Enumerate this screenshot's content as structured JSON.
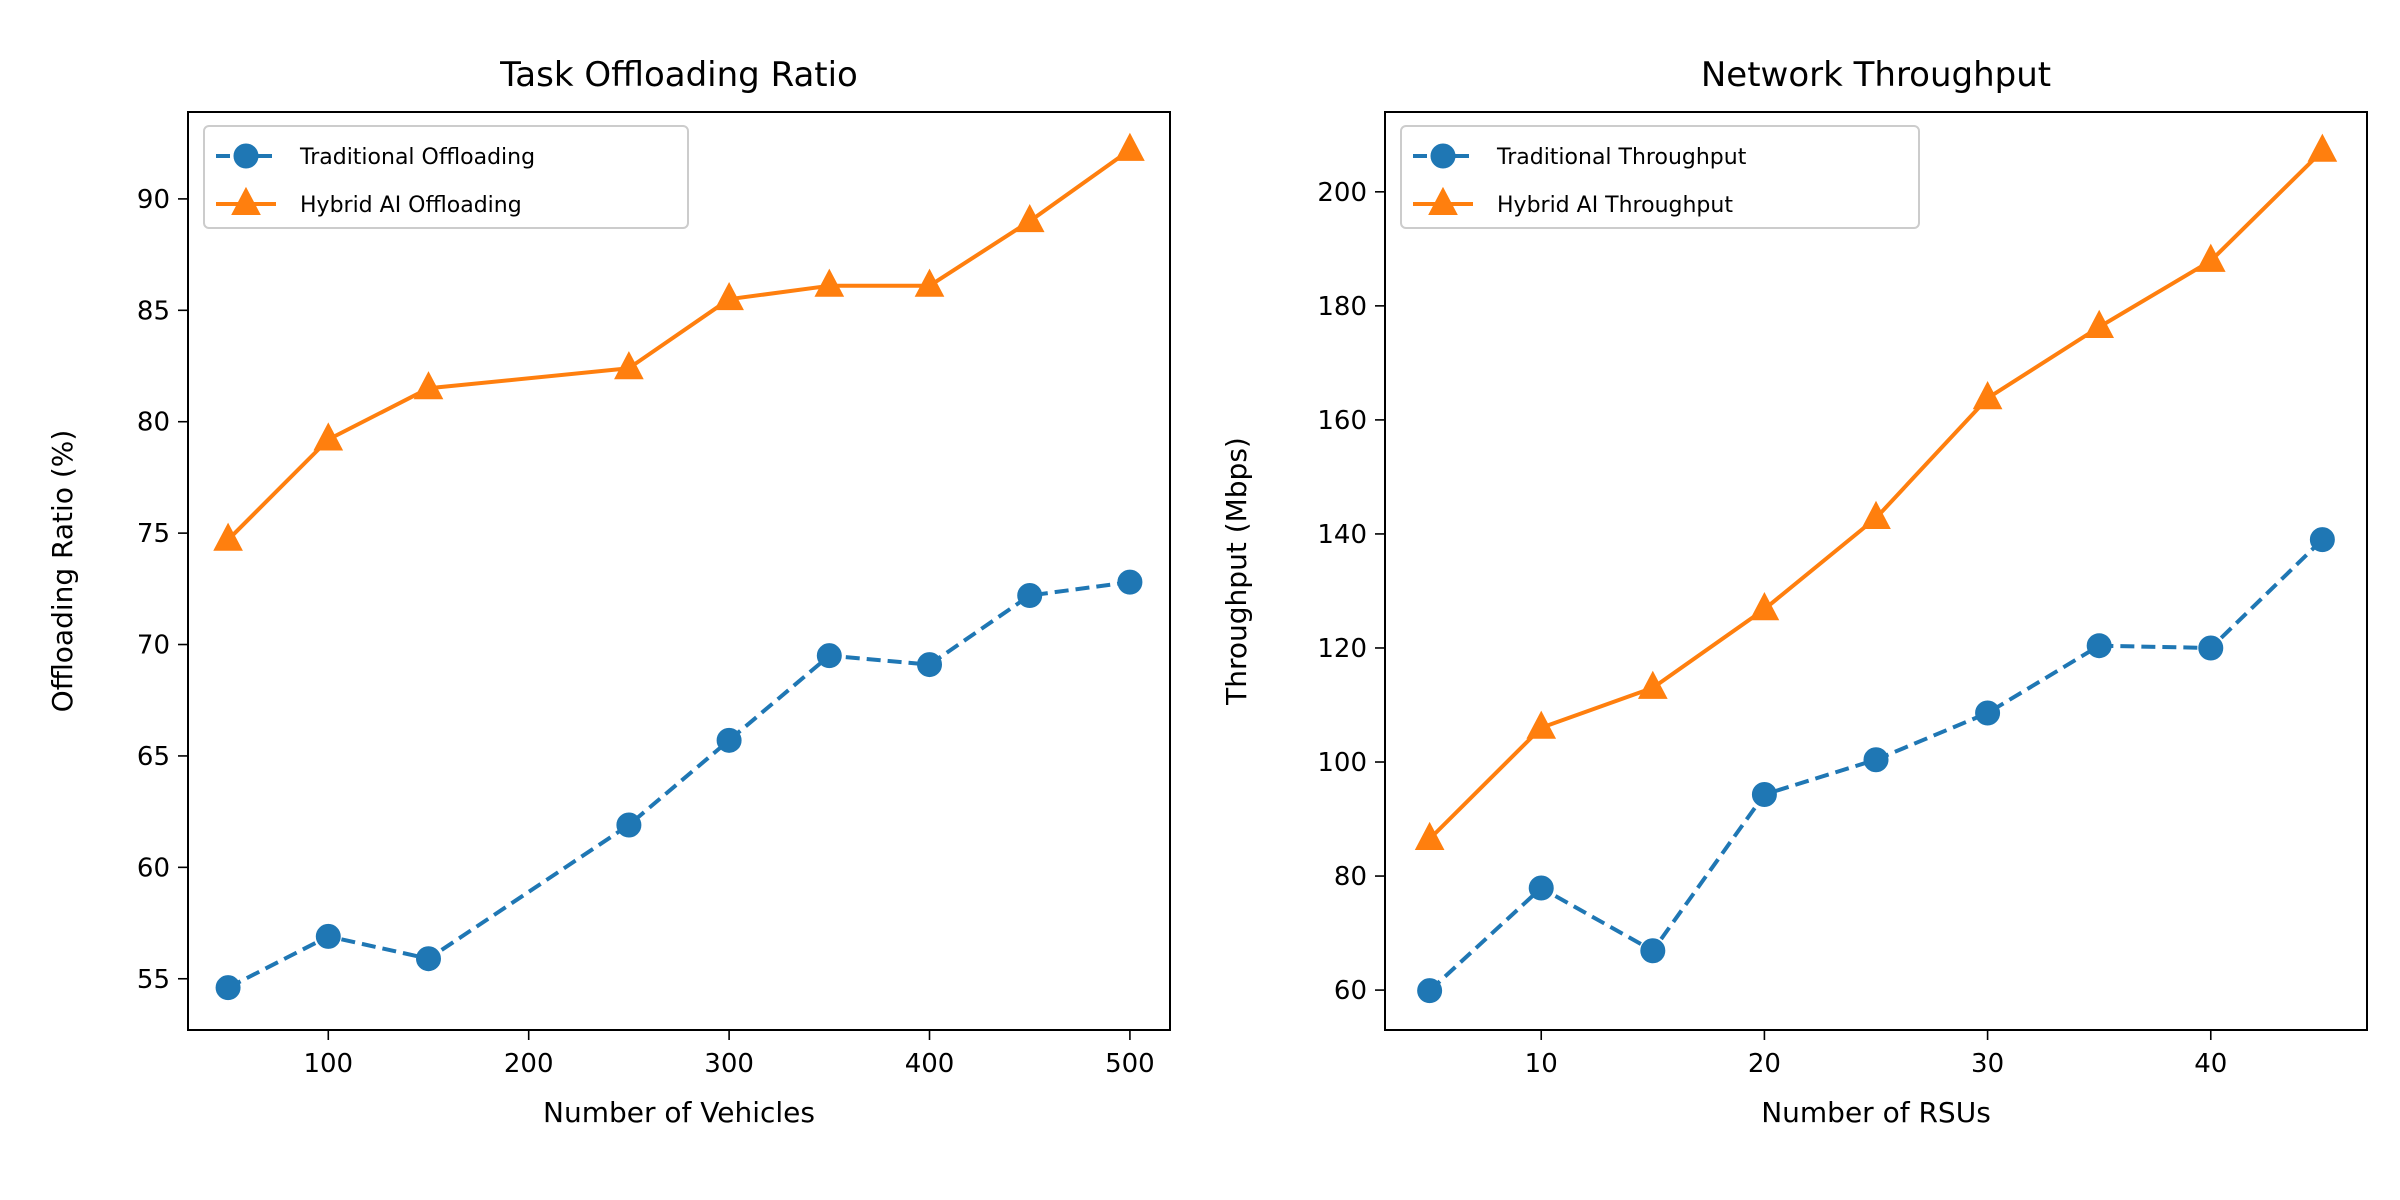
{
  "chart_data": [
    {
      "type": "line",
      "title": "Task Offloading Ratio",
      "xlabel": "Number of Vehicles",
      "ylabel": "Offloading Ratio (%)",
      "xlim": [
        30,
        520
      ],
      "ylim": [
        52.7,
        93.9
      ],
      "xticks": [
        100,
        200,
        300,
        400,
        500
      ],
      "yticks": [
        55,
        60,
        65,
        70,
        75,
        80,
        85,
        90
      ],
      "legend_position": "top-left",
      "series": [
        {
          "name": "Traditional Offloading",
          "color": "#1f77b4",
          "linestyle": "dashed",
          "marker": "circle",
          "x": [
            50,
            100,
            150,
            250,
            300,
            350,
            400,
            450,
            500
          ],
          "y": [
            54.6,
            56.9,
            55.9,
            61.9,
            65.7,
            69.5,
            69.1,
            72.2,
            72.8
          ]
        },
        {
          "name": "Hybrid AI Offloading",
          "color": "#ff7f0e",
          "linestyle": "solid",
          "marker": "triangle",
          "x": [
            50,
            100,
            150,
            250,
            300,
            350,
            400,
            450,
            500
          ],
          "y": [
            74.7,
            79.2,
            81.5,
            82.4,
            85.5,
            86.1,
            86.1,
            89.0,
            92.2
          ]
        }
      ]
    },
    {
      "type": "line",
      "title": "Network Throughput",
      "xlabel": "Number of RSUs",
      "ylabel": "Throughput (Mbps)",
      "xlim": [
        3,
        47
      ],
      "ylim": [
        53,
        214
      ],
      "xticks": [
        10,
        20,
        30,
        40
      ],
      "yticks": [
        60,
        80,
        100,
        120,
        140,
        160,
        180,
        200
      ],
      "legend_position": "top-left",
      "series": [
        {
          "name": "Traditional Throughput",
          "color": "#1f77b4",
          "linestyle": "dashed",
          "marker": "circle",
          "x": [
            5,
            10,
            15,
            20,
            25,
            30,
            35,
            40,
            45
          ],
          "y": [
            59.9,
            77.9,
            66.9,
            94.3,
            100.4,
            108.6,
            120.4,
            120.0,
            139.0
          ]
        },
        {
          "name": "Hybrid AI Throughput",
          "color": "#ff7f0e",
          "linestyle": "solid",
          "marker": "triangle",
          "x": [
            5,
            10,
            15,
            20,
            25,
            30,
            35,
            40,
            45
          ],
          "y": [
            86.5,
            106.0,
            113.0,
            126.8,
            142.8,
            163.8,
            176.3,
            187.9,
            207.2
          ]
        }
      ]
    }
  ]
}
